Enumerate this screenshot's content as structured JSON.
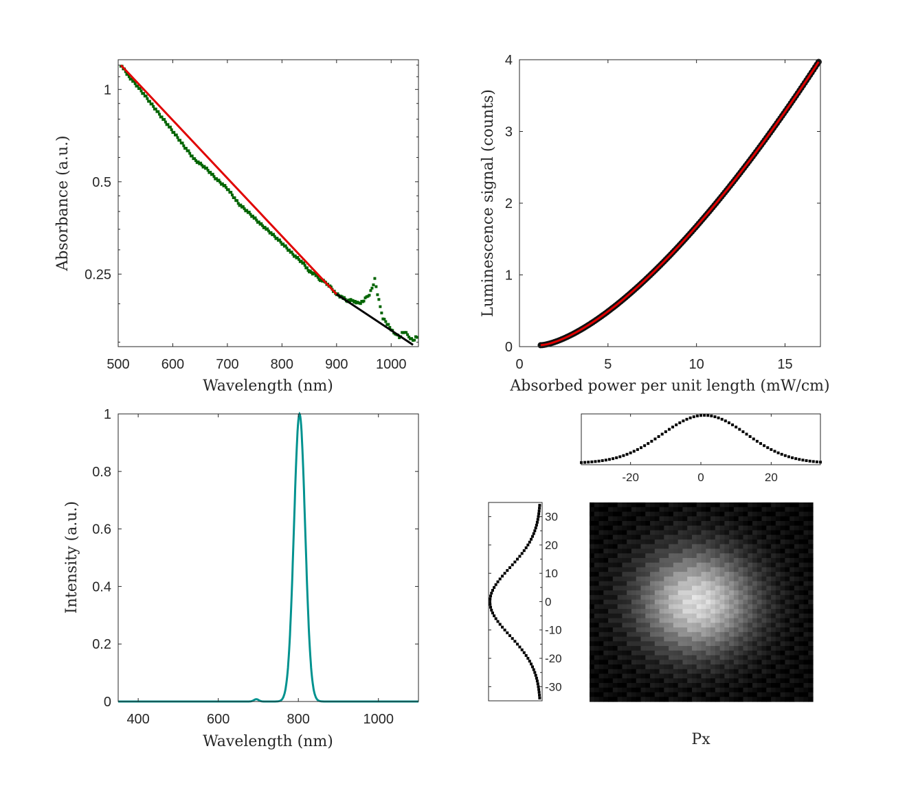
{
  "colors": {
    "absorbance_data": "#006400",
    "absorbance_fit": "#e00000",
    "absorbance_extrapolation": "#000000",
    "luminescence_data": "#111111",
    "luminescence_fit": "#e00000",
    "spectrum": "#00928f",
    "profile": "#000000"
  },
  "chart_data": [
    {
      "id": "absorbance",
      "type": "line",
      "xlabel": "Wavelength (nm)",
      "ylabel": "Absorbance (a.u.)",
      "yscale": "log",
      "xlim": [
        500,
        1050
      ],
      "ylim": [
        0.145,
        1.25
      ],
      "xticks": [
        500,
        600,
        700,
        800,
        900,
        1000
      ],
      "yticks": [
        0.25,
        0.5,
        1
      ],
      "ytick_labels": [
        "0.25",
        "0.5",
        "1"
      ],
      "series": [
        {
          "role": "measured",
          "marker": "square",
          "x": [
            505,
            520,
            540,
            560,
            580,
            600,
            620,
            640,
            660,
            680,
            700,
            720,
            740,
            760,
            780,
            800,
            820,
            840,
            850,
            860,
            870,
            880,
            890,
            900,
            910,
            920,
            930,
            940,
            950,
            955,
            960,
            965,
            970,
            975,
            980,
            985,
            990,
            995,
            1000,
            1005,
            1010,
            1015,
            1020,
            1025,
            1030,
            1035,
            1040,
            1045,
            1050
          ],
          "y": [
            1.2,
            1.1,
            1.0,
            0.9,
            0.81,
            0.73,
            0.655,
            0.59,
            0.555,
            0.51,
            0.475,
            0.425,
            0.395,
            0.365,
            0.34,
            0.315,
            0.29,
            0.27,
            0.255,
            0.25,
            0.24,
            0.235,
            0.225,
            0.215,
            0.21,
            0.205,
            0.205,
            0.2,
            0.205,
            0.21,
            0.215,
            0.225,
            0.24,
            0.215,
            0.195,
            0.18,
            0.175,
            0.17,
            0.165,
            0.16,
            0.16,
            0.155,
            0.16,
            0.162,
            0.158,
            0.155,
            0.152,
            0.155,
            0.156
          ]
        },
        {
          "role": "fit",
          "x": [
            505,
            900
          ],
          "y": [
            1.2,
            0.215
          ]
        },
        {
          "role": "extrapolation",
          "x": [
            900,
            1040
          ],
          "y": [
            0.215,
            0.147
          ]
        }
      ]
    },
    {
      "id": "luminescence",
      "type": "scatter",
      "xlabel": "Absorbed power per unit length (mW/cm)",
      "ylabel": "Luminescence signal (counts)",
      "xlim": [
        0,
        17
      ],
      "ylim": [
        0,
        4
      ],
      "xticks": [
        0,
        5,
        10,
        15
      ],
      "yticks": [
        0,
        1,
        2,
        3,
        4
      ],
      "curve": {
        "x_start": 1.2,
        "x_end": 16.9,
        "y_start": 0.02,
        "y_end": 3.97,
        "exponent": 1.5
      }
    },
    {
      "id": "emission",
      "type": "line",
      "xlabel": "Wavelength (nm)",
      "ylabel": "Intensity (a.u.)",
      "xlim": [
        350,
        1100
      ],
      "ylim": [
        0,
        1
      ],
      "xticks": [
        400,
        600,
        800,
        1000
      ],
      "yticks": [
        0,
        0.2,
        0.4,
        0.6,
        0.8,
        1
      ],
      "ytick_labels": [
        "0",
        "0.2",
        "0.4",
        "0.6",
        "0.8",
        "1"
      ],
      "peak": {
        "center": 803,
        "sigma": 14,
        "height": 1.0
      },
      "side_peak": {
        "center": 695,
        "sigma": 6,
        "height": 0.008
      }
    },
    {
      "id": "beam-profile-x",
      "type": "scatter",
      "xlim": [
        -34,
        34
      ],
      "xticks": [
        -20,
        0,
        20
      ],
      "gaussian": {
        "center": 1,
        "sigma": 12,
        "baseline": 0.03
      }
    },
    {
      "id": "beam-profile-y",
      "type": "scatter",
      "ylim": [
        -35,
        35
      ],
      "yticks": [
        -30,
        -20,
        -10,
        0,
        10,
        20,
        30
      ],
      "gaussian": {
        "center": 0,
        "sigma": 12,
        "baseline": 0.03
      }
    },
    {
      "id": "beam-image",
      "type": "heatmap",
      "xlabel": "Px",
      "spot": {
        "cx": 0.48,
        "cy": 0.5,
        "radius": 0.32
      }
    }
  ]
}
